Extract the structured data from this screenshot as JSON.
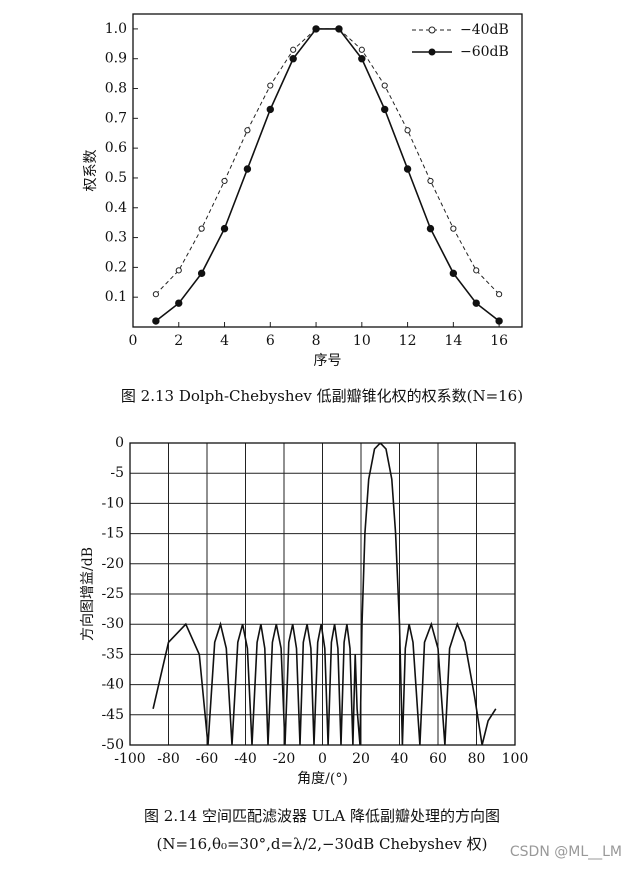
{
  "chart_data": [
    {
      "type": "line",
      "xlabel": "序号",
      "ylabel": "权系数",
      "x": [
        1,
        2,
        3,
        4,
        5,
        6,
        7,
        8,
        9,
        10,
        11,
        12,
        13,
        14,
        15,
        16
      ],
      "series": [
        {
          "name": "−40dB",
          "color": "#222222",
          "dash": true,
          "marker": "open",
          "values": [
            0.11,
            0.19,
            0.33,
            0.49,
            0.66,
            0.81,
            0.93,
            1.0,
            1.0,
            0.93,
            0.81,
            0.66,
            0.49,
            0.33,
            0.19,
            0.11
          ]
        },
        {
          "name": "−60dB",
          "color": "#111111",
          "dash": false,
          "marker": "filled",
          "values": [
            0.02,
            0.08,
            0.18,
            0.33,
            0.53,
            0.73,
            0.9,
            1.0,
            1.0,
            0.9,
            0.73,
            0.53,
            0.33,
            0.18,
            0.08,
            0.02
          ]
        }
      ],
      "xlim": [
        0,
        17
      ],
      "xticks": [
        0,
        2,
        4,
        6,
        8,
        10,
        12,
        14,
        16
      ],
      "ylim": [
        0,
        1.05
      ],
      "yticks": [
        0.1,
        0.2,
        0.3,
        0.4,
        0.5,
        0.6,
        0.7,
        0.8,
        0.9,
        {
          "value": 1.0,
          "label": "1.0"
        }
      ],
      "grid": false,
      "legend": "top-right"
    },
    {
      "type": "line",
      "xlabel": "角度/(°)",
      "ylabel": "方向图增益/dB",
      "x": [
        -88,
        -80,
        -71,
        -64,
        -59.5,
        -56,
        -53,
        -50,
        -47,
        -44,
        -41.5,
        -39,
        -36.6,
        -34,
        -32,
        -30,
        -28.3,
        -26,
        -24,
        -21.5,
        -19.5,
        -17.5,
        -15.5,
        -13.5,
        -11.7,
        -10,
        -8,
        -6,
        -4.4,
        -2.5,
        -0.7,
        1.2,
        2.9,
        4.6,
        6.3,
        8,
        9.6,
        11.2,
        12.7,
        14.3,
        15.8,
        17,
        18,
        19.5,
        20.5,
        22,
        24,
        27,
        30,
        33,
        36,
        38,
        40,
        41.5,
        43,
        45,
        47,
        50.6,
        53,
        56.5,
        60,
        63.6,
        66,
        70,
        74,
        79,
        82.9,
        86,
        90
      ],
      "values": [
        -44,
        -33,
        -30,
        -35,
        -50,
        -33,
        -30,
        -34,
        -50,
        -33,
        -30,
        -34,
        -50,
        -33,
        -30,
        -34,
        -50,
        -33,
        -30,
        -34,
        -50,
        -33,
        -30,
        -34,
        -50,
        -33,
        -30,
        -34,
        -50,
        -33,
        -30,
        -34,
        -50,
        -33,
        -30,
        -34,
        -50,
        -33,
        -30,
        -34,
        -50,
        -35,
        -44,
        -50,
        -30,
        -15,
        -6,
        -1,
        0,
        -1,
        -6,
        -15,
        -30,
        -50,
        -34,
        -30,
        -33,
        -50,
        -33,
        -30,
        -34,
        -50,
        -34,
        -30,
        -33,
        -42,
        -50,
        -46,
        -44
      ],
      "color": "#111111",
      "xlim": [
        -100,
        100
      ],
      "xticks": [
        -100,
        -80,
        -60,
        -40,
        -20,
        0,
        20,
        40,
        60,
        80,
        100
      ],
      "ylim": [
        -50,
        0
      ],
      "yticks": [
        0,
        -5,
        -10,
        -15,
        -20,
        -25,
        -30,
        -35,
        -40,
        -45,
        -50
      ],
      "grid": true
    }
  ],
  "captions": [
    "图 2.13  Dolph-Chebyshev 低副瓣锥化权的权系数(N=16)",
    "图 2.14  空间匹配滤波器 ULA 降低副瓣处理的方向图",
    "(N=16,θ₀=30°,d=λ/2,−30dB Chebyshev 权)"
  ],
  "watermark": "CSDN @ML__LM"
}
